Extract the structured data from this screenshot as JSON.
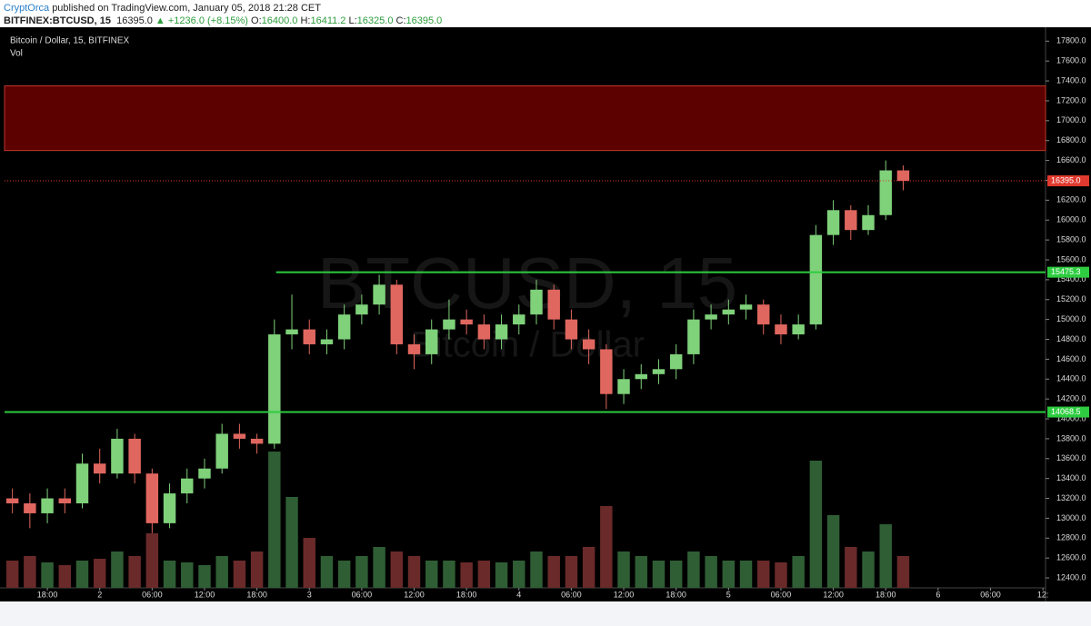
{
  "header": {
    "author": "CryptOrca",
    "published": "published on TradingView.com, January 05, 2018 21:28 CET",
    "symbol": "BITFINEX:BTCUSD, 15",
    "last": "16395.0",
    "change": "+1236.0 (+8.15%)",
    "ohlc": [
      {
        "label": "O:",
        "value": "16400.0"
      },
      {
        "label": "H:",
        "value": "16411.2"
      },
      {
        "label": "L:",
        "value": "16325.0"
      },
      {
        "label": "C:",
        "value": "16395.0"
      }
    ]
  },
  "chart_data": {
    "type": "candlestick",
    "legend": "Bitcoin / Dollar, 15, BITFINEX",
    "volume_label": "Vol",
    "watermark": "BTCUSD, 15",
    "watermark_sub": "Bitcoin / Dollar",
    "x": [
      -10,
      -8,
      -6,
      -4,
      -2,
      0,
      2,
      4,
      6,
      8,
      10,
      12,
      14,
      16,
      18,
      20,
      22,
      24,
      26,
      28,
      30,
      32,
      34,
      36,
      38,
      40,
      42,
      44,
      46,
      48,
      50,
      52,
      54,
      56,
      58,
      60,
      62,
      64,
      66,
      68,
      70,
      72,
      74,
      76,
      78,
      80,
      82,
      84,
      86,
      88,
      90,
      92
    ],
    "open": [
      13200,
      13150,
      13050,
      13200,
      13150,
      13550,
      13450,
      13800,
      13450,
      12950,
      13250,
      13400,
      13500,
      13850,
      13800,
      13750,
      14850,
      14900,
      14750,
      14800,
      15050,
      15150,
      15350,
      14750,
      14650,
      14900,
      15000,
      14950,
      14800,
      14950,
      15050,
      15300,
      15000,
      14800,
      14700,
      14250,
      14400,
      14450,
      14500,
      14650,
      15000,
      15050,
      15100,
      15150,
      14950,
      14850,
      14950,
      15850,
      16100,
      15900,
      16050,
      16500
    ],
    "high": [
      13300,
      13250,
      13300,
      13300,
      13650,
      13700,
      13900,
      13850,
      13500,
      13350,
      13500,
      13600,
      13950,
      13950,
      13850,
      15000,
      15250,
      15000,
      14900,
      15150,
      15250,
      15450,
      15400,
      14850,
      15000,
      15200,
      15100,
      15050,
      15050,
      15150,
      15400,
      15350,
      15100,
      14900,
      14750,
      14500,
      14550,
      14600,
      14750,
      15100,
      15150,
      15200,
      15250,
      15200,
      15050,
      15050,
      15950,
      16200,
      16150,
      16150,
      16600,
      16550
    ],
    "low": [
      13050,
      12900,
      12950,
      13050,
      13100,
      13350,
      13400,
      13350,
      12850,
      12900,
      13150,
      13300,
      13450,
      13700,
      13650,
      13700,
      14700,
      14650,
      14650,
      14700,
      14950,
      15050,
      14650,
      14500,
      14550,
      14800,
      14850,
      14700,
      14700,
      14850,
      14950,
      14900,
      14700,
      14550,
      14100,
      14150,
      14300,
      14350,
      14400,
      14550,
      14900,
      14950,
      15000,
      14850,
      14750,
      14800,
      14900,
      15750,
      15800,
      15850,
      16000,
      16300
    ],
    "close": [
      13150,
      13050,
      13200,
      13150,
      13550,
      13450,
      13800,
      13450,
      12950,
      13250,
      13400,
      13500,
      13850,
      13800,
      13750,
      14850,
      14900,
      14750,
      14800,
      15050,
      15150,
      15350,
      14750,
      14650,
      14900,
      15000,
      14950,
      14800,
      14950,
      15050,
      15300,
      15000,
      14800,
      14700,
      14250,
      14400,
      14450,
      14500,
      14650,
      15000,
      15050,
      15100,
      15150,
      14950,
      14850,
      14950,
      15850,
      16100,
      15900,
      16050,
      16500,
      16395
    ],
    "volume": [
      30,
      35,
      28,
      25,
      30,
      32,
      40,
      35,
      60,
      30,
      28,
      25,
      35,
      30,
      40,
      150,
      100,
      55,
      35,
      30,
      35,
      45,
      40,
      35,
      30,
      30,
      28,
      30,
      28,
      30,
      40,
      35,
      35,
      45,
      90,
      40,
      35,
      30,
      30,
      40,
      35,
      30,
      30,
      30,
      28,
      35,
      140,
      80,
      45,
      40,
      70,
      35
    ],
    "vlim": [
      0,
      170
    ],
    "up_color": "#7fd17a",
    "down_color": "#e0675f",
    "xlim": [
      -10.9,
      108.3
    ],
    "xticks": [
      {
        "value": -6,
        "label": "18:00"
      },
      {
        "value": 0,
        "label": "2"
      },
      {
        "value": 6,
        "label": "06:00"
      },
      {
        "value": 12,
        "label": "12:00"
      },
      {
        "value": 18,
        "label": "18:00"
      },
      {
        "value": 24,
        "label": "3"
      },
      {
        "value": 30,
        "label": "06:00"
      },
      {
        "value": 36,
        "label": "12:00"
      },
      {
        "value": 42,
        "label": "18:00"
      },
      {
        "value": 48,
        "label": "4"
      },
      {
        "value": 54,
        "label": "06:00"
      },
      {
        "value": 60,
        "label": "12:00"
      },
      {
        "value": 66,
        "label": "18:00"
      },
      {
        "value": 72,
        "label": "5"
      },
      {
        "value": 78,
        "label": "06:00"
      },
      {
        "value": 84,
        "label": "12:00"
      },
      {
        "value": 90,
        "label": "18:00"
      },
      {
        "value": 96,
        "label": "6"
      },
      {
        "value": 102,
        "label": "06:00"
      },
      {
        "value": 108,
        "label": "12:"
      }
    ],
    "ylim": [
      12300,
      17940
    ],
    "yticks": [
      {
        "value": 12400,
        "label": "12400.0"
      },
      {
        "value": 12600,
        "label": "12600.0"
      },
      {
        "value": 12800,
        "label": "12800.0"
      },
      {
        "value": 13000,
        "label": "13000.0"
      },
      {
        "value": 13200,
        "label": "13200.0"
      },
      {
        "value": 13400,
        "label": "13400.0"
      },
      {
        "value": 13600,
        "label": "13600.0"
      },
      {
        "value": 13800,
        "label": "13800.0"
      },
      {
        "value": 14000,
        "label": "14000.0"
      },
      {
        "value": 14200,
        "label": "14200.0"
      },
      {
        "value": 14400,
        "label": "14400.0"
      },
      {
        "value": 14600,
        "label": "14600.0"
      },
      {
        "value": 14800,
        "label": "14800.0"
      },
      {
        "value": 15000,
        "label": "15000.0"
      },
      {
        "value": 15200,
        "label": "15200.0"
      },
      {
        "value": 15400,
        "label": "15400.0"
      },
      {
        "value": 15600,
        "label": "15600.0"
      },
      {
        "value": 15800,
        "label": "15800.0"
      },
      {
        "value": 16000,
        "label": "16000.0"
      },
      {
        "value": 16200,
        "label": "16200.0"
      },
      {
        "value": 16400,
        "label": "16400.0"
      },
      {
        "value": 16600,
        "label": "16600.0"
      },
      {
        "value": 16800,
        "label": "16800.0"
      },
      {
        "value": 17000,
        "label": "17000.0"
      },
      {
        "value": 17200,
        "label": "17200.0"
      },
      {
        "value": 17400,
        "label": "17400.0"
      },
      {
        "value": 17600,
        "label": "17600.0"
      },
      {
        "value": 17800,
        "label": "17800.0"
      }
    ],
    "zone": {
      "low": 16700,
      "high": 17350,
      "color": "#5c0000"
    },
    "levels": [
      {
        "value": 15475.3,
        "x_start": 20.2,
        "color": "#2ecc40"
      },
      {
        "value": 14068.5,
        "x_start": -10.9,
        "color": "#2ecc40"
      }
    ],
    "last_price": {
      "value": 16395,
      "label": "16395.0",
      "color": "#e0392f"
    }
  }
}
